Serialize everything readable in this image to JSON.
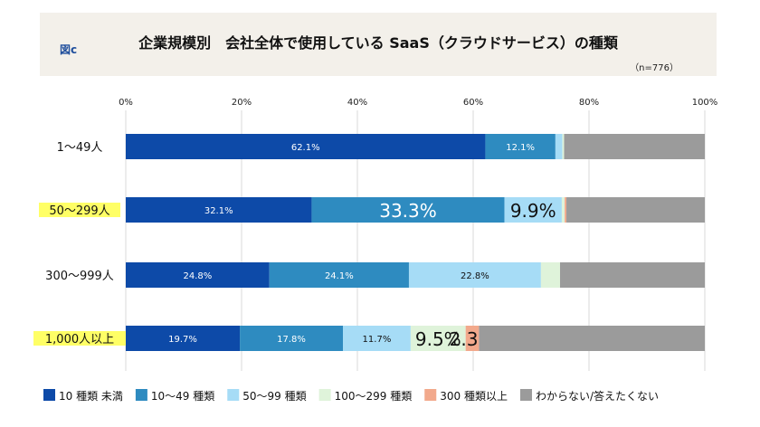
{
  "header": {
    "figure_label": "図c",
    "title": "企業規模別　会社全体で使用している SaaS（クラウドサービス）の種類",
    "sample": "（n=776）"
  },
  "chart_data": {
    "type": "bar",
    "orientation": "horizontal",
    "stacked": true,
    "categories": [
      "1～49人",
      "50～299人",
      "300～999人",
      "1,000人以上"
    ],
    "highlighted_categories": [
      "50～299人",
      "1,000人以上"
    ],
    "highlight_color": "#ffff66",
    "xlim": [
      0,
      100
    ],
    "x_ticks": [
      "0%",
      "20%",
      "40%",
      "60%",
      "80%",
      "100%"
    ],
    "grid": true,
    "legend_position": "bottom",
    "series": [
      {
        "name": "10 種類 未満",
        "color": "#0d4aa8",
        "values": [
          62.1,
          32.1,
          24.8,
          19.7
        ],
        "labels": [
          "62.1%",
          "32.1%",
          "24.8%",
          "19.7%"
        ],
        "label_color": "#ffffff",
        "emphasized": [
          false,
          false,
          false,
          false
        ]
      },
      {
        "name": "10～49 種類",
        "color": "#2e8bc0",
        "values": [
          12.1,
          33.3,
          24.1,
          17.8
        ],
        "labels": [
          "12.1%",
          "33.3%",
          "24.1%",
          "17.8%"
        ],
        "label_color": "#ffffff",
        "emphasized": [
          false,
          true,
          false,
          false
        ]
      },
      {
        "name": "50～99 種類",
        "color": "#a6dcf6",
        "values": [
          1.2,
          9.9,
          22.8,
          11.7
        ],
        "labels": [
          "",
          "9.9%",
          "22.8%",
          "11.7%"
        ],
        "label_color": "#111111",
        "emphasized": [
          false,
          true,
          false,
          false
        ]
      },
      {
        "name": "100～299 種類",
        "color": "#dff3da",
        "values": [
          0.3,
          0.5,
          3.3,
          9.5
        ],
        "labels": [
          "",
          "",
          "",
          "9.5%"
        ],
        "label_color": "#111111",
        "emphasized": [
          false,
          false,
          false,
          true
        ]
      },
      {
        "name": "300 種類以上",
        "color": "#f2a98c",
        "values": [
          0,
          0.3,
          0,
          2.3
        ],
        "labels": [
          "",
          "",
          "",
          "2.3%"
        ],
        "label_color": "#111111",
        "emphasized": [
          false,
          false,
          false,
          true
        ]
      },
      {
        "name": "わからない/答えたくない",
        "color": "#9b9b9b",
        "values": [
          24.3,
          23.9,
          25.0,
          39.0
        ],
        "labels": [
          "",
          "",
          "",
          ""
        ],
        "label_color": "#111111",
        "emphasized": [
          false,
          false,
          false,
          false
        ]
      }
    ]
  }
}
